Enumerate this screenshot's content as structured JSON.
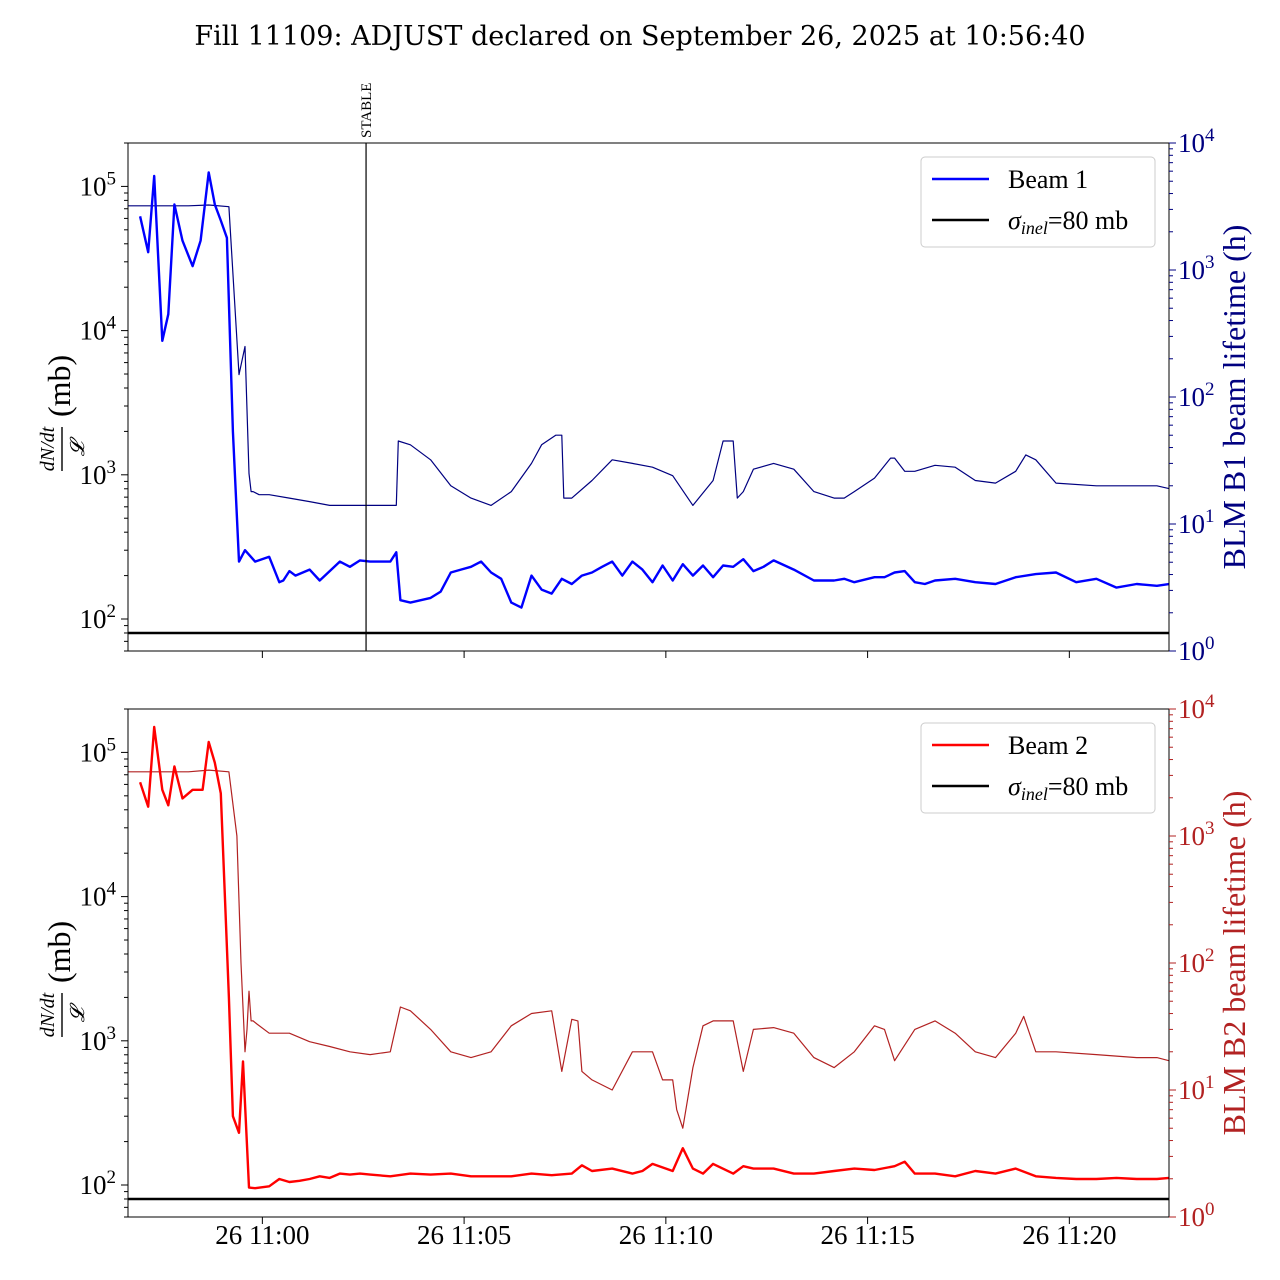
{
  "figure": {
    "title": "Fill 11109: ADJUST declared on September 26, 2025 at 10:56:40"
  },
  "chart_data": [
    {
      "type": "line",
      "panel": "top",
      "x_unit": "minutes after 10:56:40",
      "xlim_minutes": [
        0,
        25.8
      ],
      "x_ticks": [
        {
          "minute": 3.33,
          "label": "26 11:00"
        },
        {
          "minute": 8.33,
          "label": "26 11:05"
        },
        {
          "minute": 13.33,
          "label": "26 11:10"
        },
        {
          "minute": 18.33,
          "label": "26 11:15"
        },
        {
          "minute": 23.33,
          "label": "26 11:20"
        }
      ],
      "ylabel": {
        "numerator": "dN/dt",
        "denominator": "𝓛",
        "unit": "(mb)"
      },
      "ylim": [
        60,
        200000
      ],
      "yscale": "log",
      "y_ticks": [
        {
          "value": 100,
          "base": "10",
          "exp": "2"
        },
        {
          "value": 1000,
          "base": "10",
          "exp": "3"
        },
        {
          "value": 10000,
          "base": "10",
          "exp": "4"
        },
        {
          "value": 100000,
          "base": "10",
          "exp": "5"
        }
      ],
      "y2label": "BLM B1 beam lifetime (h)",
      "y2lim": [
        1,
        10000
      ],
      "y2scale": "log",
      "y2_ticks": [
        {
          "value": 1,
          "base": "10",
          "exp": "0"
        },
        {
          "value": 10,
          "base": "10",
          "exp": "1"
        },
        {
          "value": 100,
          "base": "10",
          "exp": "2"
        },
        {
          "value": 1000,
          "base": "10",
          "exp": "3"
        },
        {
          "value": 10000,
          "base": "10",
          "exp": "4"
        }
      ],
      "y2_color": "#000080",
      "annotation": {
        "label": "STABLE",
        "x": 5.9
      },
      "legend": {
        "position": "top-right",
        "entries": [
          {
            "label": "Beam 1",
            "color": "#0000ff"
          },
          {
            "label": "σinel=80 mb",
            "color": "#000000"
          }
        ]
      },
      "series": [
        {
          "name": "Beam 1",
          "axis": "left",
          "color": "#0000ff",
          "x": [
            0.3,
            0.5,
            0.65,
            0.85,
            1.0,
            1.15,
            1.35,
            1.6,
            1.8,
            2.0,
            2.15,
            2.3,
            2.45,
            2.6,
            2.75,
            2.9,
            3.15,
            3.5,
            3.75,
            3.85,
            4.0,
            4.15,
            4.5,
            4.75,
            5.0,
            5.25,
            5.5,
            5.75,
            6.0,
            6.5,
            6.65,
            6.75,
            7.0,
            7.5,
            7.75,
            8.0,
            8.25,
            8.5,
            8.75,
            9.0,
            9.25,
            9.5,
            9.75,
            10.0,
            10.25,
            10.5,
            10.75,
            11.0,
            11.25,
            11.5,
            11.75,
            12.0,
            12.25,
            12.5,
            12.75,
            13.0,
            13.25,
            13.5,
            13.75,
            14.0,
            14.25,
            14.5,
            14.75,
            15.0,
            15.25,
            15.5,
            15.75,
            16.0,
            16.5,
            17.0,
            17.5,
            17.75,
            18.0,
            18.5,
            18.75,
            19.0,
            19.25,
            19.5,
            19.75,
            20.0,
            20.5,
            21.0,
            21.5,
            22.0,
            22.5,
            23.0,
            23.5,
            24.0,
            24.5,
            25.0,
            25.5,
            25.8
          ],
          "y": [
            62000,
            35000,
            118000,
            8500,
            13000,
            75000,
            42000,
            28000,
            42000,
            125000,
            75000,
            58000,
            44000,
            2000,
            250,
            300,
            250,
            270,
            180,
            185,
            215,
            200,
            220,
            185,
            215,
            250,
            230,
            255,
            250,
            250,
            290,
            135,
            130,
            140,
            155,
            210,
            220,
            230,
            250,
            210,
            190,
            130,
            120,
            200,
            160,
            150,
            190,
            175,
            200,
            210,
            230,
            250,
            200,
            250,
            220,
            180,
            235,
            185,
            240,
            200,
            235,
            195,
            235,
            230,
            260,
            215,
            230,
            255,
            220,
            185,
            185,
            190,
            180,
            195,
            195,
            210,
            215,
            180,
            175,
            185,
            190,
            180,
            175,
            195,
            205,
            210,
            180,
            190,
            165,
            175,
            170,
            175
          ]
        },
        {
          "name": "BLM B1 beam lifetime",
          "axis": "right",
          "color": "#000080",
          "x": [
            0.0,
            0.5,
            1.0,
            1.5,
            2.0,
            2.5,
            2.75,
            2.9,
            3.0,
            3.05,
            3.1,
            3.25,
            3.5,
            4.0,
            4.5,
            5.0,
            5.5,
            6.0,
            6.5,
            6.65,
            6.7,
            7.0,
            7.5,
            8.0,
            8.5,
            9.0,
            9.5,
            10.0,
            10.25,
            10.6,
            10.75,
            10.8,
            11.0,
            11.5,
            12.0,
            12.5,
            13.0,
            13.5,
            14.0,
            14.5,
            14.75,
            15.0,
            15.1,
            15.25,
            15.5,
            16.0,
            16.5,
            17.0,
            17.5,
            17.75,
            18.0,
            18.5,
            18.9,
            19.0,
            19.25,
            19.5,
            20.0,
            20.5,
            21.0,
            21.5,
            22.0,
            22.25,
            22.5,
            23.0,
            24.0,
            25.0,
            25.5,
            25.8
          ],
          "y": [
            3200,
            3200,
            3200,
            3200,
            3250,
            3150,
            150,
            250,
            25,
            18,
            18,
            17,
            17,
            16,
            15,
            14,
            14,
            14,
            14,
            14,
            45,
            42,
            32,
            20,
            16,
            14,
            18,
            30,
            42,
            50,
            50,
            16,
            16,
            22,
            32,
            30,
            28,
            24,
            14,
            22,
            45,
            45,
            16,
            18,
            27,
            30,
            27,
            18,
            16,
            16,
            18,
            23,
            33,
            33,
            26,
            26,
            29,
            28,
            22,
            21,
            26,
            35,
            32,
            21,
            20,
            20,
            20,
            19
          ]
        },
        {
          "name": "σinel=80 mb",
          "axis": "left",
          "color": "#000000",
          "x": [
            0,
            25.8
          ],
          "y": [
            80,
            80
          ]
        }
      ]
    },
    {
      "type": "line",
      "panel": "bottom",
      "x_unit": "minutes after 10:56:40",
      "xlim_minutes": [
        0,
        25.8
      ],
      "x_ticks": [
        {
          "minute": 3.33,
          "label": "26 11:00"
        },
        {
          "minute": 8.33,
          "label": "26 11:05"
        },
        {
          "minute": 13.33,
          "label": "26 11:10"
        },
        {
          "minute": 18.33,
          "label": "26 11:15"
        },
        {
          "minute": 23.33,
          "label": "26 11:20"
        }
      ],
      "ylabel": {
        "numerator": "dN/dt",
        "denominator": "𝓛",
        "unit": "(mb)"
      },
      "ylim": [
        60,
        200000
      ],
      "yscale": "log",
      "y_ticks": [
        {
          "value": 100,
          "base": "10",
          "exp": "2"
        },
        {
          "value": 1000,
          "base": "10",
          "exp": "3"
        },
        {
          "value": 10000,
          "base": "10",
          "exp": "4"
        },
        {
          "value": 100000,
          "base": "10",
          "exp": "5"
        }
      ],
      "y2label": "BLM B2 beam lifetime (h)",
      "y2lim": [
        1,
        10000
      ],
      "y2scale": "log",
      "y2_ticks": [
        {
          "value": 1,
          "base": "10",
          "exp": "0"
        },
        {
          "value": 10,
          "base": "10",
          "exp": "1"
        },
        {
          "value": 100,
          "base": "10",
          "exp": "2"
        },
        {
          "value": 1000,
          "base": "10",
          "exp": "3"
        },
        {
          "value": 10000,
          "base": "10",
          "exp": "4"
        }
      ],
      "y2_color": "#b22222",
      "legend": {
        "position": "top-right",
        "entries": [
          {
            "label": "Beam 2",
            "color": "#ff0000"
          },
          {
            "label": "σinel=80 mb",
            "color": "#000000"
          }
        ]
      },
      "series": [
        {
          "name": "Beam 2",
          "axis": "left",
          "color": "#ff0000",
          "x": [
            0.3,
            0.5,
            0.65,
            0.85,
            1.0,
            1.15,
            1.35,
            1.6,
            1.85,
            2.0,
            2.15,
            2.3,
            2.5,
            2.6,
            2.75,
            2.85,
            3.0,
            3.15,
            3.5,
            3.75,
            4.0,
            4.25,
            4.5,
            4.75,
            5.0,
            5.25,
            5.5,
            5.75,
            6.0,
            6.5,
            7.0,
            7.5,
            8.0,
            8.5,
            9.0,
            9.5,
            10.0,
            10.5,
            11.0,
            11.25,
            11.5,
            12.0,
            12.5,
            12.75,
            13.0,
            13.5,
            13.75,
            14.0,
            14.25,
            14.5,
            15.0,
            15.25,
            15.5,
            16.0,
            16.5,
            17.0,
            17.5,
            18.0,
            18.5,
            19.0,
            19.25,
            19.5,
            20.0,
            20.5,
            21.0,
            21.5,
            22.0,
            22.5,
            23.0,
            23.5,
            24.0,
            24.5,
            25.0,
            25.5,
            25.8
          ],
          "y": [
            62000,
            42000,
            150000,
            55000,
            43000,
            80000,
            48000,
            55000,
            55000,
            118000,
            85000,
            52000,
            2000,
            300,
            230,
            720,
            96,
            95,
            98,
            110,
            105,
            107,
            110,
            115,
            112,
            120,
            118,
            120,
            118,
            115,
            120,
            118,
            120,
            115,
            115,
            115,
            120,
            117,
            120,
            137,
            125,
            130,
            120,
            125,
            140,
            125,
            180,
            130,
            120,
            140,
            120,
            135,
            130,
            130,
            120,
            120,
            125,
            130,
            127,
            135,
            145,
            120,
            120,
            115,
            125,
            120,
            130,
            115,
            112,
            110,
            110,
            112,
            110,
            110,
            112
          ]
        },
        {
          "name": "BLM B2 beam lifetime",
          "axis": "right",
          "color": "#b22222",
          "x": [
            0.0,
            0.5,
            1.0,
            1.5,
            2.0,
            2.5,
            2.7,
            2.8,
            2.9,
            2.95,
            3.0,
            3.05,
            3.1,
            3.2,
            3.5,
            4.0,
            4.5,
            5.0,
            5.5,
            6.0,
            6.5,
            6.75,
            7.0,
            7.5,
            8.0,
            8.5,
            9.0,
            9.5,
            10.0,
            10.5,
            10.75,
            11.0,
            11.15,
            11.25,
            11.5,
            12.0,
            12.5,
            13.0,
            13.25,
            13.5,
            13.6,
            13.75,
            14.0,
            14.25,
            14.5,
            15.0,
            15.25,
            15.5,
            16.0,
            16.5,
            17.0,
            17.5,
            18.0,
            18.5,
            18.75,
            19.0,
            19.5,
            20.0,
            20.5,
            21.0,
            21.5,
            22.0,
            22.2,
            22.5,
            23.0,
            24.0,
            25.0,
            25.5,
            25.8
          ],
          "y": [
            3200,
            3200,
            3200,
            3200,
            3300,
            3200,
            1000,
            100,
            20,
            30,
            60,
            35,
            35,
            33,
            28,
            28,
            24,
            22,
            20,
            19,
            20,
            45,
            42,
            30,
            20,
            18,
            20,
            32,
            40,
            42,
            14,
            36,
            35,
            14,
            12,
            10,
            20,
            20,
            12,
            12,
            7,
            5,
            15,
            32,
            35,
            35,
            14,
            30,
            31,
            28,
            18,
            15,
            20,
            32,
            30,
            17,
            30,
            35,
            28,
            20,
            18,
            28,
            38,
            20,
            20,
            19,
            18,
            18,
            17
          ]
        },
        {
          "name": "σinel=80 mb",
          "axis": "left",
          "color": "#000000",
          "x": [
            0,
            25.8
          ],
          "y": [
            80,
            80
          ]
        }
      ]
    }
  ]
}
